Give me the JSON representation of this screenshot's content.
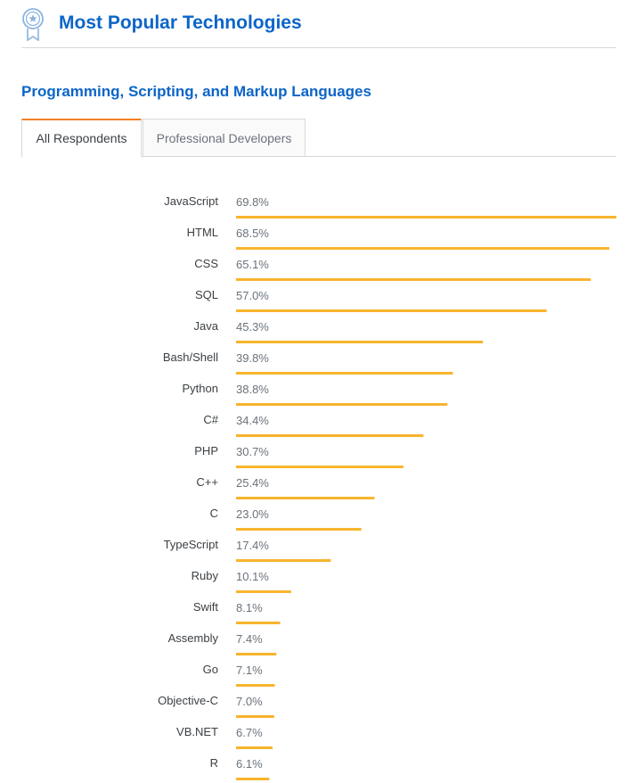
{
  "header": {
    "title": "Most Popular Technologies"
  },
  "section": {
    "title": "Programming, Scripting, and Markup Languages"
  },
  "tabs": [
    {
      "label": "All Respondents",
      "active": true
    },
    {
      "label": "Professional Developers",
      "active": false
    }
  ],
  "colors": {
    "accent": "#0c65c8",
    "bar": "#f8b42d",
    "tab_highlight": "#f48024"
  },
  "chart_data": {
    "type": "bar",
    "orientation": "horizontal",
    "categories": [
      "JavaScript",
      "HTML",
      "CSS",
      "SQL",
      "Java",
      "Bash/Shell",
      "Python",
      "C#",
      "PHP",
      "C++",
      "C",
      "TypeScript",
      "Ruby",
      "Swift",
      "Assembly",
      "Go",
      "Objective-C",
      "VB.NET",
      "R"
    ],
    "values": [
      69.8,
      68.5,
      65.1,
      57.0,
      45.3,
      39.8,
      38.8,
      34.4,
      30.7,
      25.4,
      23.0,
      17.4,
      10.1,
      8.1,
      7.4,
      7.1,
      7.0,
      6.7,
      6.1
    ],
    "value_suffix": "%",
    "xlim": [
      0,
      69.8
    ],
    "grid": false,
    "legend": "none"
  }
}
